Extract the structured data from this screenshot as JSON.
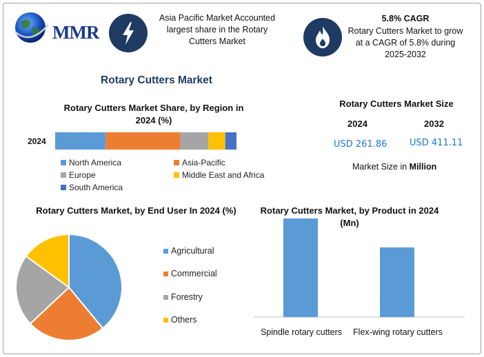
{
  "brand": {
    "name": "MMR"
  },
  "info_boxes": [
    {
      "icon": "lightning-bolt-icon",
      "text": "Asia Pacific Market Accounted largest share in the Rotary Cutters Market"
    },
    {
      "icon": "flame-icon",
      "title": "5.8% CAGR",
      "text": "Rotary Cutters Market to grow at a CAGR of 5.8% during 2025-2032"
    }
  ],
  "main_title": "Rotary Cutters Market",
  "market_size": {
    "title": "Rotary Cutters Market Size",
    "year_a": "2024",
    "year_b": "2032",
    "value_a": "USD 261.86",
    "value_b": "USD 411.11",
    "note_prefix": "Market Size in ",
    "note_bold": "Million"
  },
  "colors": {
    "north_america": "#5b9bd5",
    "asia_pacific": "#ed7d31",
    "europe": "#a5a5a5",
    "mea": "#ffc000",
    "south_america": "#4472c4",
    "icon_bg": "#1f3b63"
  },
  "chart_data": [
    {
      "type": "bar",
      "orientation": "horizontal-stacked",
      "title": "Rotary Cutters Market Share, by Region in 2024 (%)",
      "categories": [
        "2024"
      ],
      "series": [
        {
          "name": "North America",
          "values": [
            27
          ],
          "color": "#5b9bd5"
        },
        {
          "name": "Asia-Pacific",
          "values": [
            40
          ],
          "color": "#ed7d31"
        },
        {
          "name": "Europe",
          "values": [
            15
          ],
          "color": "#a5a5a5"
        },
        {
          "name": "Middle East and Africa",
          "values": [
            9
          ],
          "color": "#ffc000"
        },
        {
          "name": "South America",
          "values": [
            6
          ],
          "color": "#4472c4"
        }
      ],
      "legend_position": "bottom"
    },
    {
      "type": "pie",
      "title": "Rotary Cutters Market, by End User In 2024 (%)",
      "labels": [
        "Agricultural",
        "Commercial",
        "Forestry",
        "Others"
      ],
      "values": [
        39,
        24,
        22,
        15
      ],
      "colors": [
        "#5b9bd5",
        "#ed7d31",
        "#a5a5a5",
        "#ffc000"
      ],
      "legend_position": "right"
    },
    {
      "type": "bar",
      "title": "Rotary Cutters Market, by Product in 2024 (Mn)",
      "categories": [
        "Spindle rotary cutters",
        "Flex-wing rotary cutters"
      ],
      "values": [
        160,
        113
      ],
      "color": "#5b9bd5",
      "ylim": [
        0,
        160
      ]
    }
  ]
}
